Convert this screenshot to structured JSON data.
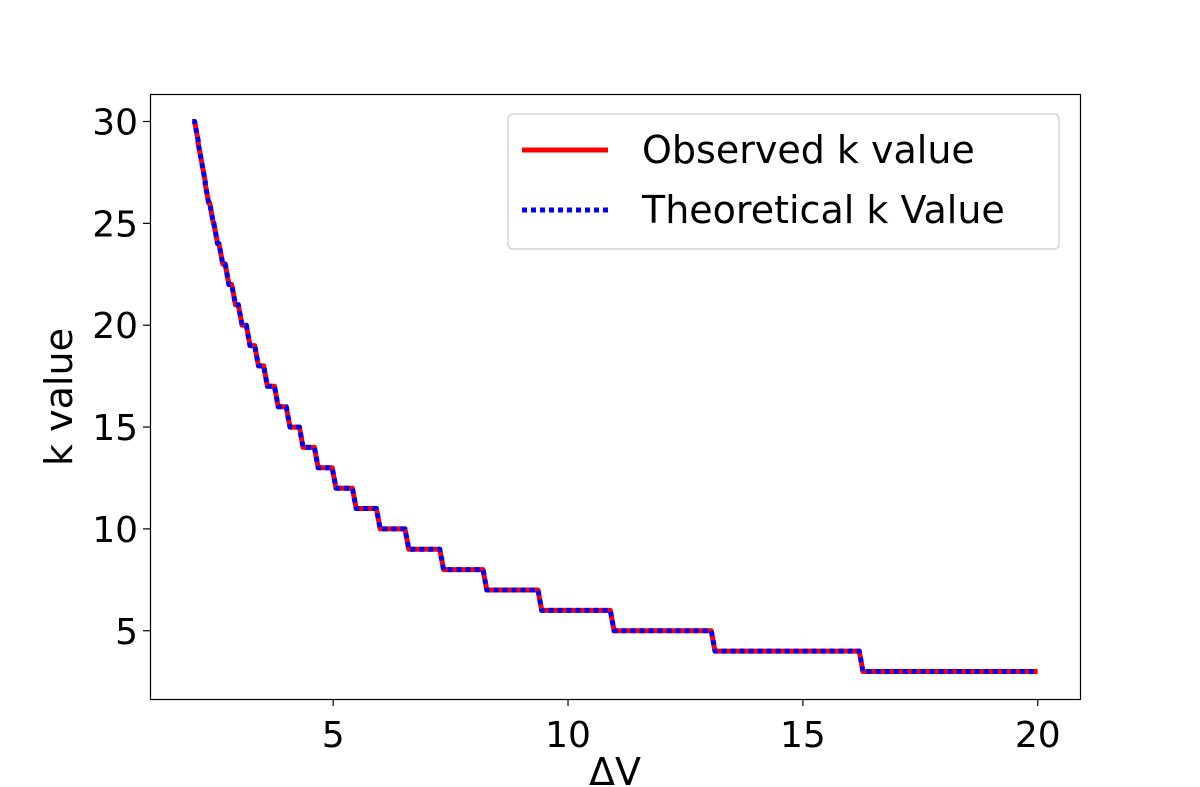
{
  "chart_data": {
    "type": "line",
    "xlabel": "ΔV",
    "ylabel": "k value",
    "xlim": [
      1.1,
      20.9
    ],
    "ylim": [
      1.65,
      31.35
    ],
    "x_ticks": [
      5,
      10,
      15,
      20
    ],
    "y_ticks": [
      5,
      10,
      15,
      20,
      25,
      30
    ],
    "grid": false,
    "legend_position": "top-right",
    "series": [
      {
        "name": "Observed k value",
        "color": "#ff0000",
        "style": "solid",
        "steps": [
          {
            "y": 30,
            "x_end": 2.05
          },
          {
            "y": 29,
            "x_end": 2.12
          },
          {
            "y": 28,
            "x_end": 2.2
          },
          {
            "y": 27,
            "x_end": 2.27
          },
          {
            "y": 26,
            "x_end": 2.37
          },
          {
            "y": 25,
            "x_end": 2.46
          },
          {
            "y": 24,
            "x_end": 2.57
          },
          {
            "y": 23,
            "x_end": 2.7
          },
          {
            "y": 22,
            "x_end": 2.84
          },
          {
            "y": 21,
            "x_end": 2.98
          },
          {
            "y": 20,
            "x_end": 3.15
          },
          {
            "y": 19,
            "x_end": 3.33
          },
          {
            "y": 18,
            "x_end": 3.52
          },
          {
            "y": 17,
            "x_end": 3.75
          },
          {
            "y": 16,
            "x_end": 4.0
          },
          {
            "y": 15,
            "x_end": 4.28
          },
          {
            "y": 14,
            "x_end": 4.6
          },
          {
            "y": 13,
            "x_end": 4.98
          },
          {
            "y": 12,
            "x_end": 5.41
          },
          {
            "y": 11,
            "x_end": 5.92
          },
          {
            "y": 10,
            "x_end": 6.53
          },
          {
            "y": 9,
            "x_end": 7.27
          },
          {
            "y": 8,
            "x_end": 8.19
          },
          {
            "y": 7,
            "x_end": 9.36
          },
          {
            "y": 6,
            "x_end": 10.9
          },
          {
            "y": 5,
            "x_end": 13.05
          },
          {
            "y": 4,
            "x_end": 16.2
          },
          {
            "y": 3,
            "x_end": 20.0
          }
        ],
        "x_start": 2.0
      },
      {
        "name": "Theoretical k Value",
        "color": "#0000ff",
        "style": "dotted",
        "same_as": "Observed k value"
      }
    ]
  }
}
